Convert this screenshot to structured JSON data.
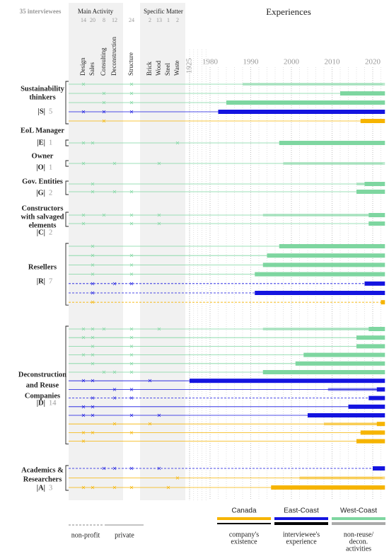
{
  "header": {
    "interviewees": "35 interviewees",
    "main_activity": "Main Activity",
    "specific_matter": "Specific Matter",
    "experiences": "Experiences"
  },
  "columns": [
    {
      "label": "Design",
      "count": 14
    },
    {
      "label": "Sales",
      "count": 20
    },
    {
      "label": "Consulting",
      "count": 8
    },
    {
      "label": "Deconstruction",
      "count": 12
    },
    {
      "label": "Structure",
      "count": 24
    },
    {
      "label": "Brick",
      "count": 2
    },
    {
      "label": "Wood",
      "count": 13
    },
    {
      "label": "Steel",
      "count": 1
    },
    {
      "label": "Waste",
      "count": 2
    }
  ],
  "xticks": [
    1925,
    1980,
    1990,
    2000,
    2010,
    2020
  ],
  "groups": [
    {
      "label_lines": [
        "Sustainability",
        "thinkers"
      ],
      "code": "|S|",
      "count": 5,
      "rows": [
        {
          "region": "west",
          "style": "private",
          "marks": [
            0,
            4
          ],
          "bars": [
            [
              1988,
              2023,
              "non-reuse"
            ]
          ]
        },
        {
          "region": "west",
          "style": "private",
          "marks": [
            2,
            4
          ],
          "bars": [
            [
              2012,
              2023,
              "experience"
            ]
          ]
        },
        {
          "region": "west",
          "style": "private",
          "marks": [
            2,
            4
          ],
          "bars": [
            [
              1984,
              2023,
              "experience"
            ]
          ]
        },
        {
          "region": "east",
          "style": "private",
          "marks": [
            0,
            2,
            4
          ],
          "bars": [
            [
              1982,
              2023,
              "experience"
            ]
          ]
        },
        {
          "region": "canada",
          "style": "private",
          "marks": [
            2
          ],
          "bars": [
            [
              2017,
              2023,
              "experience"
            ]
          ]
        }
      ]
    },
    {
      "label_lines": [
        "EoL Manager"
      ],
      "code": "|E|",
      "count": 1,
      "rows": [
        {
          "region": "west",
          "style": "private",
          "marks": [
            0,
            1,
            8
          ],
          "bars": [
            [
              1997,
              2023,
              "experience"
            ]
          ]
        }
      ]
    },
    {
      "label_lines": [
        "Owner"
      ],
      "code": "|O|",
      "count": 1,
      "rows": [
        {
          "region": "west",
          "style": "private",
          "marks": [
            0,
            3,
            6
          ],
          "bars": [
            [
              1998,
              2023,
              "non-reuse"
            ]
          ]
        }
      ]
    },
    {
      "label_lines": [
        "Gov. Entities"
      ],
      "code": "|G|",
      "count": 2,
      "rows": [
        {
          "region": "west",
          "style": "private",
          "marks": [
            1
          ],
          "bars": [
            [
              2016,
              2018,
              "non-reuse"
            ],
            [
              2018,
              2023,
              "experience"
            ]
          ]
        },
        {
          "region": "west",
          "style": "private",
          "marks": [
            1,
            3,
            4
          ],
          "bars": [
            [
              2016,
              2023,
              "experience"
            ]
          ]
        }
      ]
    },
    {
      "label_lines": [
        "Constructors",
        "with salvaged",
        "elements"
      ],
      "code": "|C|",
      "count": 2,
      "rows": [
        {
          "region": "west",
          "style": "private",
          "marks": [
            0,
            2,
            4,
            6
          ],
          "bars": [
            [
              1993,
              2019,
              "non-reuse"
            ],
            [
              2019,
              2023,
              "experience"
            ]
          ]
        },
        {
          "region": "west",
          "style": "private",
          "marks": [
            0,
            4,
            6
          ],
          "bars": [
            [
              2019,
              2023,
              "experience"
            ]
          ]
        }
      ]
    },
    {
      "label_lines": [
        "Resellers"
      ],
      "code": "|R|",
      "count": 7,
      "rows": [
        {
          "region": "west",
          "style": "private",
          "marks": [
            1
          ],
          "bars": [
            [
              1997,
              2023,
              "experience"
            ]
          ]
        },
        {
          "region": "west",
          "style": "private",
          "marks": [
            1,
            4
          ],
          "bars": [
            [
              1994,
              2023,
              "experience"
            ]
          ]
        },
        {
          "region": "west",
          "style": "private",
          "marks": [
            1,
            4
          ],
          "bars": [
            [
              1993,
              2023,
              "experience"
            ]
          ]
        },
        {
          "region": "west",
          "style": "private",
          "marks": [
            1,
            4
          ],
          "bars": [
            [
              1991,
              2023,
              "experience"
            ]
          ]
        },
        {
          "region": "east",
          "style": "non-profit",
          "marks": [
            1,
            3,
            4
          ],
          "bars": [
            [
              2018,
              2023,
              "experience"
            ]
          ]
        },
        {
          "region": "east",
          "style": "non-profit",
          "marks": [
            1
          ],
          "bars": [
            [
              1991,
              2023,
              "experience"
            ]
          ]
        },
        {
          "region": "canada",
          "style": "non-profit",
          "marks": [
            1
          ],
          "bars": [
            [
              2022,
              2023,
              "experience"
            ]
          ]
        }
      ]
    },
    {
      "label_lines": [
        "Deconstruction",
        "and Reuse",
        "Companies"
      ],
      "code": "|D|",
      "count": 14,
      "rows": [
        {
          "region": "west",
          "style": "private",
          "marks": [
            0,
            1,
            2,
            4,
            6
          ],
          "bars": [
            [
              1993,
              2019,
              "non-reuse"
            ],
            [
              2019,
              2023,
              "experience"
            ]
          ]
        },
        {
          "region": "west",
          "style": "private",
          "marks": [
            0,
            1,
            4
          ],
          "bars": [
            [
              2016,
              2023,
              "experience"
            ]
          ]
        },
        {
          "region": "west",
          "style": "private",
          "marks": [
            1,
            4
          ],
          "bars": [
            [
              2016,
              2023,
              "experience"
            ]
          ]
        },
        {
          "region": "west",
          "style": "private",
          "marks": [
            0,
            1,
            4
          ],
          "bars": [
            [
              2003,
              2023,
              "experience"
            ]
          ]
        },
        {
          "region": "west",
          "style": "private",
          "marks": [
            1,
            4
          ],
          "bars": [
            [
              2001,
              2023,
              "experience"
            ]
          ]
        },
        {
          "region": "west",
          "style": "private",
          "marks": [
            2,
            3,
            4
          ],
          "bars": [
            [
              1993,
              2023,
              "experience"
            ]
          ]
        },
        {
          "region": "east",
          "style": "private",
          "marks": [
            0,
            1,
            5
          ],
          "bars": [
            [
              1925,
              2023,
              "experience"
            ]
          ]
        },
        {
          "region": "east",
          "style": "private",
          "marks": [
            3,
            4
          ],
          "bars": [
            [
              2009,
              2021,
              "non-reuse"
            ],
            [
              2021,
              2023,
              "experience"
            ]
          ]
        },
        {
          "region": "east",
          "style": "non-profit",
          "marks": [
            1,
            3,
            4
          ],
          "bars": [
            [
              2019,
              2023,
              "experience"
            ]
          ]
        },
        {
          "region": "east",
          "style": "private",
          "marks": [
            0,
            1
          ],
          "bars": [
            [
              2014,
              2023,
              "experience"
            ]
          ]
        },
        {
          "region": "east",
          "style": "private",
          "marks": [
            0,
            1,
            4,
            6
          ],
          "bars": [
            [
              2004,
              2023,
              "experience"
            ]
          ]
        },
        {
          "region": "canada",
          "style": "private",
          "marks": [
            3,
            5
          ],
          "bars": [
            [
              2008,
              2021,
              "non-reuse"
            ],
            [
              2021,
              2023,
              "experience"
            ]
          ]
        },
        {
          "region": "canada",
          "style": "private",
          "marks": [
            0,
            1,
            4
          ],
          "bars": [
            [
              2017,
              2023,
              "experience"
            ]
          ]
        },
        {
          "region": "canada",
          "style": "private",
          "marks": [
            0
          ],
          "bars": [
            [
              2016,
              2023,
              "experience"
            ]
          ]
        }
      ]
    },
    {
      "label_lines": [
        "Academics &",
        "Researchers"
      ],
      "code": "|A|",
      "count": 3,
      "rows": [
        {
          "region": "east",
          "style": "non-profit",
          "marks": [
            2,
            3,
            4,
            6
          ],
          "bars": [
            [
              2020,
              2023,
              "experience"
            ]
          ]
        },
        {
          "region": "canada",
          "style": "private",
          "marks": [
            8
          ],
          "bars": [
            [
              2002,
              2023,
              "non-reuse"
            ]
          ]
        },
        {
          "region": "canada",
          "style": "private",
          "marks": [
            0,
            1,
            3,
            4,
            7
          ],
          "bars": [
            [
              1995,
              2023,
              "experience"
            ]
          ]
        }
      ]
    }
  ],
  "legend": {
    "regions": [
      {
        "name": "Canada",
        "color": "#f6b400"
      },
      {
        "name": "East-Coast",
        "color": "#1414e0"
      },
      {
        "name": "West-Coast",
        "color": "#7ed6a0"
      }
    ],
    "kinds": [
      [
        "company's",
        "existence"
      ],
      [
        "interviewee's",
        "experience"
      ],
      [
        "non-reuse/",
        "decon.",
        "activities"
      ]
    ],
    "styles": [
      "non-profit",
      "private"
    ]
  }
}
